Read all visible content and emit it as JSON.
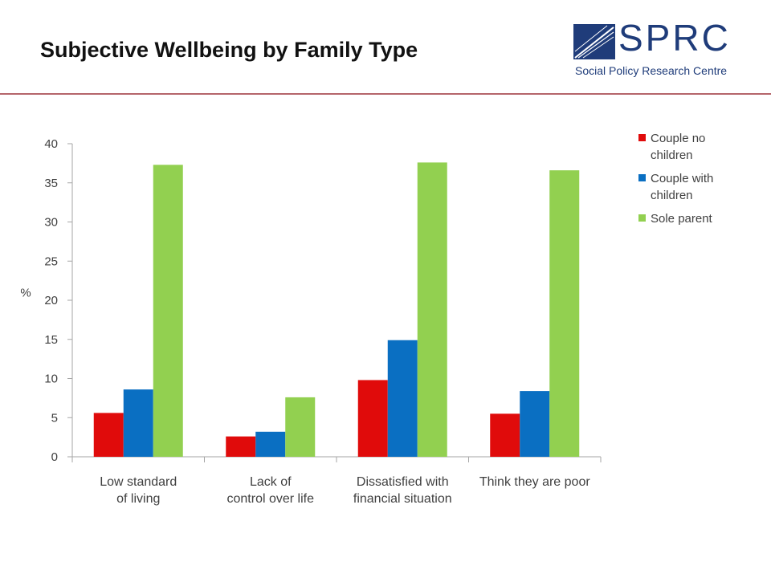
{
  "header": {
    "title": "Subjective Wellbeing by Family Type",
    "logo_name": "SPRC",
    "logo_subtitle": "Social Policy Research Centre",
    "rule_color": "#b5656b"
  },
  "chart_data": {
    "type": "bar",
    "title": "",
    "xlabel": "",
    "ylabel": "%",
    "ylim": [
      0,
      40
    ],
    "yticks": [
      0,
      5,
      10,
      15,
      20,
      25,
      30,
      35,
      40
    ],
    "grid": false,
    "legend_position": "right",
    "categories": [
      [
        "Low standard",
        "of living"
      ],
      [
        "Lack of",
        "control over life"
      ],
      [
        "Dissatisfied with",
        "financial situation"
      ],
      [
        "Think they are poor"
      ]
    ],
    "series": [
      {
        "name": [
          "Couple no",
          "children"
        ],
        "color": "#e00b0b",
        "values": [
          5.6,
          2.6,
          9.8,
          5.5
        ]
      },
      {
        "name": [
          "Couple with",
          "children"
        ],
        "color": "#0a6fc2",
        "values": [
          8.6,
          3.2,
          14.9,
          8.4
        ]
      },
      {
        "name": [
          "Sole parent"
        ],
        "color": "#92d050",
        "values": [
          37.3,
          7.6,
          37.6,
          36.6
        ]
      }
    ]
  }
}
